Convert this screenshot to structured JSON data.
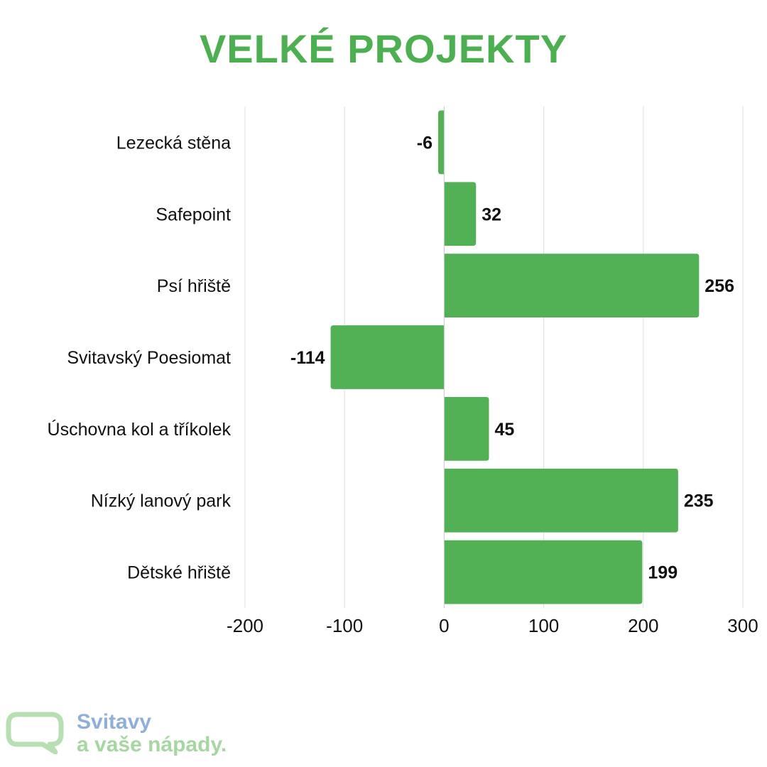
{
  "title": "VELKÉ PROJEKTY",
  "colors": {
    "title": "#4caf50",
    "bar": "#52b055",
    "grid": "#dddddd",
    "logo_text": "#8fb0d6",
    "logo_text2": "#a6d6a1",
    "logo_bubble": "#b7dfb3"
  },
  "chart_data": {
    "type": "bar",
    "orientation": "horizontal",
    "categories": [
      "Lezecká stěna",
      "Safepoint",
      "Psí hřiště",
      "Svitavský Poesiomat",
      "Úschovna kol a tříkolek",
      "Nízký lanový park",
      "Dětské hřiště"
    ],
    "values": [
      -6,
      32,
      256,
      -114,
      45,
      235,
      199
    ],
    "xlim": [
      -200,
      300
    ],
    "xticks": [
      -200,
      -100,
      0,
      100,
      200,
      300
    ],
    "grid": true,
    "data_labels": true
  },
  "logo": {
    "line1": "Svitavy",
    "line2": "a vaše nápady.",
    "icon": "speech-bubble-icon"
  }
}
